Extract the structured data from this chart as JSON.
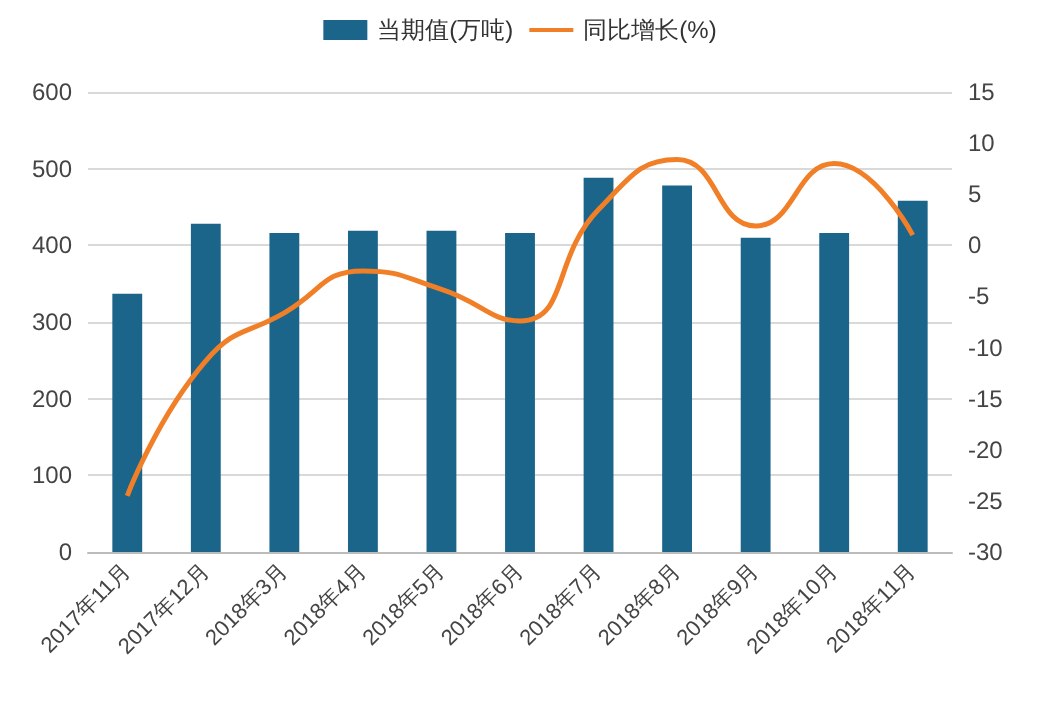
{
  "chart_data": {
    "type": "bar",
    "categories": [
      "2017年11月",
      "2017年12月",
      "2018年3月",
      "2018年4月",
      "2018年5月",
      "2018年6月",
      "2018年7月",
      "2018年8月",
      "2018年9月",
      "2018年10月",
      "2018年11月"
    ],
    "series": [
      {
        "name": "当期值(万吨)",
        "color": "#1a6589",
        "values": [
          337,
          428,
          416,
          419,
          419,
          416,
          488,
          478,
          410,
          416,
          458
        ]
      },
      {
        "name": "同比增长(%)",
        "type": "line",
        "axis": "y2",
        "color": "#f07f28",
        "values": [
          -24.5,
          -11.3,
          -6.6,
          -2.5,
          -4.3,
          -7.4,
          3.5,
          8.4,
          1.9,
          8.0,
          1.0
        ]
      }
    ],
    "ylim": [
      0,
      600
    ],
    "yticks": [
      0,
      100,
      200,
      300,
      400,
      500,
      600
    ],
    "y2lim": [
      -30,
      15
    ],
    "y2ticks": [
      -30,
      -25,
      -20,
      -15,
      -10,
      -5,
      0,
      5,
      10,
      15
    ],
    "grid": "y",
    "legend": "top",
    "marker": "none",
    "line_style": "solid"
  }
}
